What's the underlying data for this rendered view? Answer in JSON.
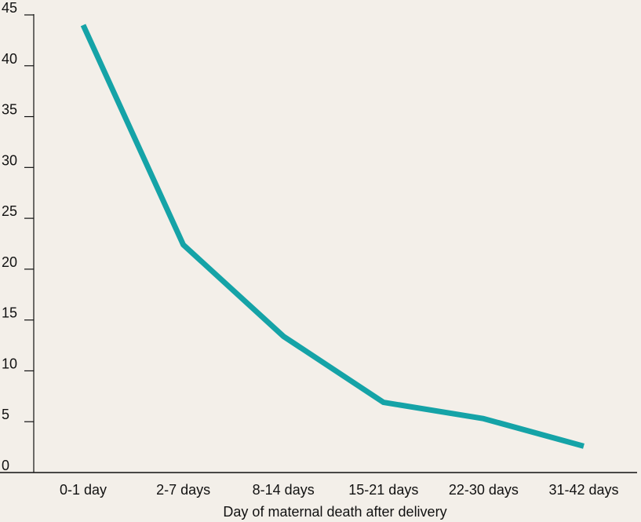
{
  "colors": {
    "background": "#f3efe9",
    "series_line": "#15a3a7",
    "axis": "#111111"
  },
  "chart_data": {
    "type": "line",
    "title": "",
    "xlabel": "Day of maternal death after delivery",
    "ylabel": "",
    "categories": [
      "0-1 day",
      "2-7 days",
      "8-14 days",
      "15-21 days",
      "22-30 days",
      "31-42 days"
    ],
    "series": [
      {
        "values": [
          44,
          22.4,
          13.4,
          6.9,
          5.3,
          2.6
        ]
      }
    ],
    "ylim": [
      0,
      45
    ],
    "yticks": [
      0,
      5,
      10,
      15,
      20,
      25,
      30,
      35,
      40,
      45
    ],
    "grid": false,
    "legend": "none"
  }
}
